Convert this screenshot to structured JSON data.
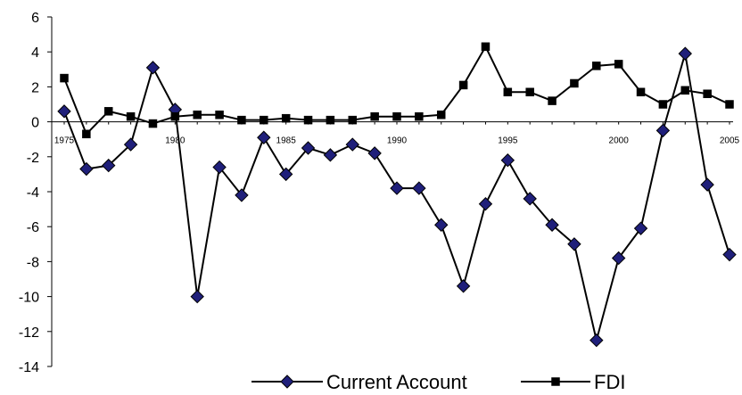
{
  "chart_data": {
    "type": "line",
    "title": "",
    "xlabel": "",
    "ylabel": "",
    "x": [
      1975,
      1976,
      1977,
      1978,
      1979,
      1980,
      1981,
      1982,
      1983,
      1984,
      1985,
      1986,
      1987,
      1988,
      1989,
      1990,
      1991,
      1992,
      1993,
      1994,
      1995,
      1996,
      1997,
      1998,
      1999,
      2000,
      2001,
      2002,
      2003,
      2004,
      2005
    ],
    "x_ticks": [
      1975,
      1980,
      1985,
      1990,
      1995,
      2000,
      2005
    ],
    "y_ticks": [
      6,
      4,
      2,
      0,
      -2,
      -4,
      -6,
      -8,
      -10,
      -12,
      -14
    ],
    "ylim": [
      -14,
      6
    ],
    "xlim": [
      1975,
      2005
    ],
    "grid": false,
    "legend_position": "bottom",
    "series": [
      {
        "name": "Current Account",
        "marker": "diamond",
        "marker_color": "#1f1f7a",
        "line_color": "#000000",
        "values": [
          0.6,
          -2.7,
          -2.5,
          -1.3,
          3.1,
          0.7,
          -10.0,
          -2.6,
          -4.2,
          -0.9,
          -3.0,
          -1.5,
          -1.9,
          -1.3,
          -1.8,
          -3.8,
          -3.8,
          -5.9,
          -9.4,
          -4.7,
          -2.2,
          -4.4,
          -5.9,
          -7.0,
          -12.5,
          -7.8,
          -6.1,
          -0.5,
          3.9,
          -3.6,
          -7.6
        ]
      },
      {
        "name": "FDI",
        "marker": "square",
        "marker_color": "#000000",
        "line_color": "#000000",
        "values": [
          2.5,
          -0.7,
          0.6,
          0.3,
          -0.1,
          0.3,
          0.4,
          0.4,
          0.1,
          0.1,
          0.2,
          0.1,
          0.1,
          0.1,
          0.3,
          0.3,
          0.3,
          0.4,
          2.1,
          4.3,
          1.7,
          1.7,
          1.2,
          2.2,
          3.2,
          3.3,
          1.7,
          1.0,
          1.8,
          1.6,
          1.0
        ]
      }
    ]
  }
}
